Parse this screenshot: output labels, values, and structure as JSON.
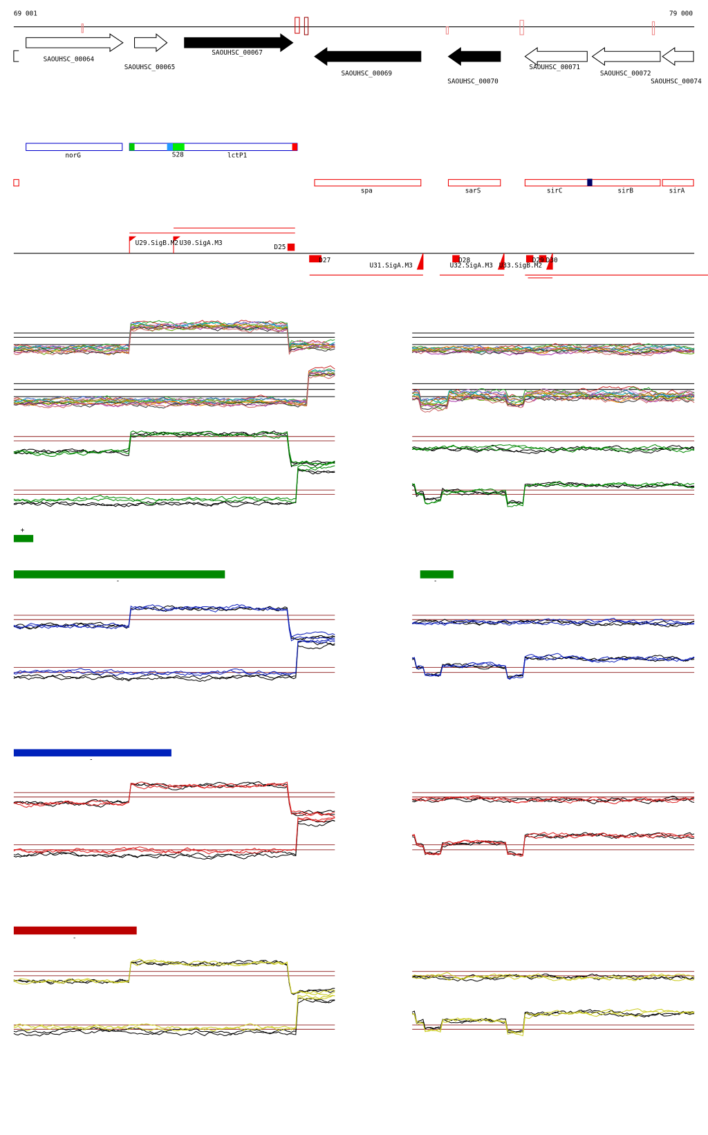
{
  "ruler": {
    "start": "69 001",
    "end": "79 000"
  },
  "genes": [
    "SAOUHSC_00064",
    "SAOUHSC_00065",
    "SAOUHSC_00067",
    "SAOUHSC_00069",
    "SAOUHSC_00070",
    "SAOUHSC_00071",
    "SAOUHSC_00072",
    "SAOUHSC_00074"
  ],
  "features": [
    "norG",
    "S28",
    "lctP1",
    "spa",
    "sarS",
    "sirC",
    "sirB",
    "sirA"
  ],
  "promoters": [
    "U29.SigB.M2",
    "U30.SigA.M3",
    "D25",
    "D27",
    "U31.SigA.M3",
    "D28",
    "U32.SigA.M3",
    "U33.SigB.M2",
    "D29",
    "D30"
  ],
  "strand_labels": [
    "+",
    "-",
    "-",
    "-",
    "-"
  ]
}
